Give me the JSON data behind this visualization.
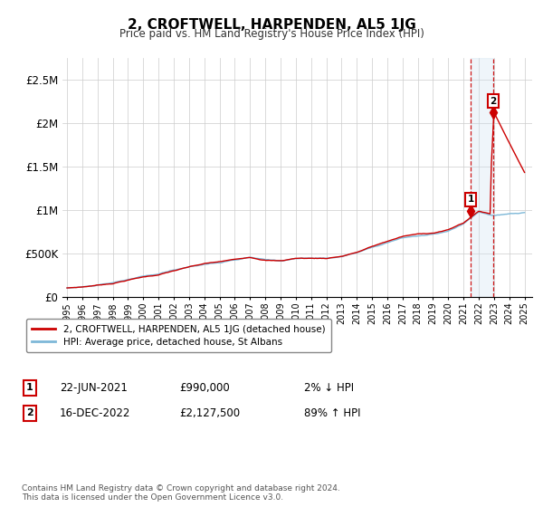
{
  "title": "2, CROFTWELL, HARPENDEN, AL5 1JG",
  "subtitle": "Price paid vs. HM Land Registry's House Price Index (HPI)",
  "ylabel_ticks": [
    "£0",
    "£500K",
    "£1M",
    "£1.5M",
    "£2M",
    "£2.5M"
  ],
  "ytick_values": [
    0,
    500000,
    1000000,
    1500000,
    2000000,
    2500000
  ],
  "ylim": [
    0,
    2750000
  ],
  "xlim_start": 1994.7,
  "xlim_end": 2025.5,
  "hpi_color": "#7db8d8",
  "price_color": "#cc0000",
  "shaded_color": "#cce0f0",
  "marker1_date": 2021.47,
  "marker2_date": 2022.96,
  "marker1_price": 990000,
  "marker2_price": 2127500,
  "legend_line1": "2, CROFTWELL, HARPENDEN, AL5 1JG (detached house)",
  "legend_line2": "HPI: Average price, detached house, St Albans",
  "note1_label": "1",
  "note1_date": "22-JUN-2021",
  "note1_price": "£990,000",
  "note1_hpi": "2% ↓ HPI",
  "note2_label": "2",
  "note2_date": "16-DEC-2022",
  "note2_price": "£2,127,500",
  "note2_hpi": "89% ↑ HPI",
  "footer": "Contains HM Land Registry data © Crown copyright and database right 2024.\nThis data is licensed under the Open Government Licence v3.0.",
  "background_color": "#ffffff",
  "hpi_yearly": [
    100000,
    112000,
    133000,
    155000,
    195000,
    230000,
    255000,
    300000,
    340000,
    375000,
    395000,
    420000,
    450000,
    420000,
    410000,
    440000,
    440000,
    440000,
    465000,
    510000,
    575000,
    635000,
    690000,
    715000,
    730000,
    765000,
    845000,
    980000,
    940000,
    955000,
    970000
  ],
  "years_hpi": [
    1995,
    1996,
    1997,
    1998,
    1999,
    2000,
    2001,
    2002,
    2003,
    2004,
    2005,
    2006,
    2007,
    2008,
    2009,
    2010,
    2011,
    2012,
    2013,
    2014,
    2015,
    2016,
    2017,
    2018,
    2019,
    2020,
    2021,
    2022,
    2023,
    2024,
    2025
  ]
}
